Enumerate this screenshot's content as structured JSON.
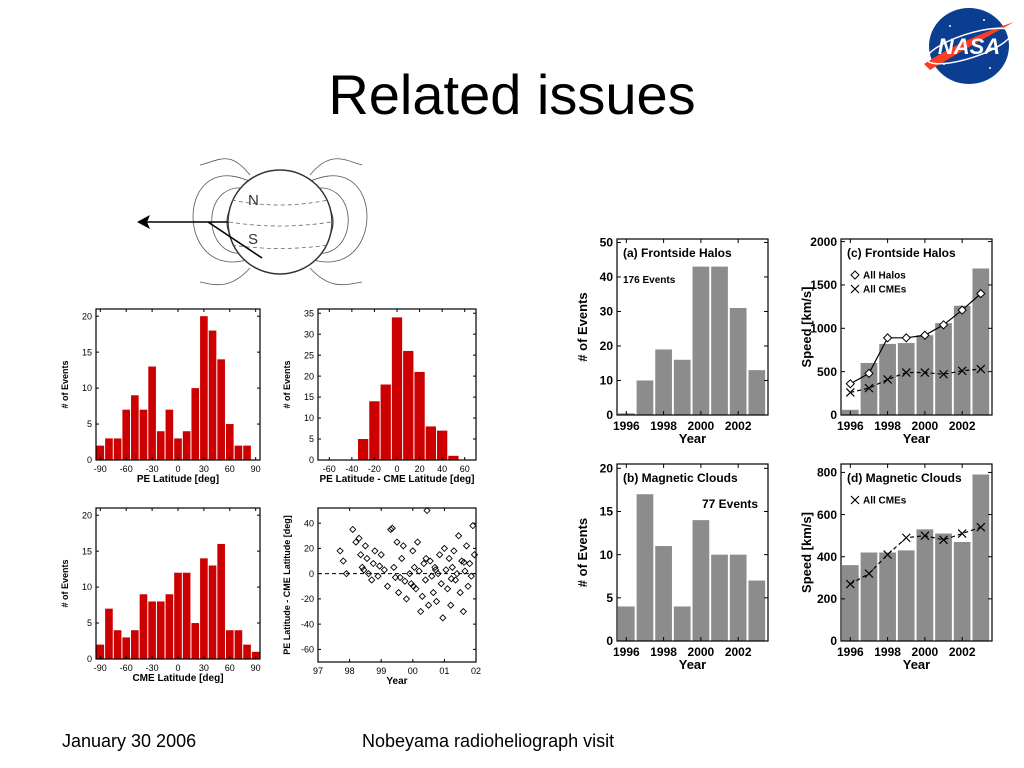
{
  "slide": {
    "title": "Related issues",
    "footer_left": "January 30 2006",
    "footer_center": "Nobeyama radioheliograph visit"
  },
  "logo": {
    "text": "NASA",
    "icon": "nasa-meatball-logo",
    "colors": {
      "blue": "#0b3d91",
      "red": "#fc3d21"
    }
  },
  "diagram": {
    "north_label": "N",
    "south_label": "S",
    "icon": "sun-magnetic-field-diagram"
  },
  "colors": {
    "red_bar": "#cc0000",
    "gray_bar": "#8c8c8c"
  },
  "chart_data": [
    {
      "id": "pe_lat_hist",
      "type": "bar",
      "xlabel": "PE Latitude [deg]",
      "ylabel": "# of Events",
      "x": [
        -90,
        -80,
        -70,
        -60,
        -50,
        -40,
        -30,
        -20,
        -10,
        0,
        10,
        20,
        30,
        40,
        50,
        60,
        70,
        80,
        90
      ],
      "values": [
        2,
        3,
        3,
        7,
        9,
        7,
        13,
        4,
        7,
        3,
        4,
        10,
        20,
        18,
        14,
        5,
        2,
        2,
        0
      ],
      "xticks": [
        -90,
        -60,
        -30,
        0,
        30,
        60,
        90
      ],
      "yticks": [
        0,
        5,
        10,
        15,
        20
      ],
      "xlim": [
        -95,
        95
      ],
      "ylim": [
        0,
        21
      ]
    },
    {
      "id": "cme_lat_hist",
      "type": "bar",
      "xlabel": "CME Latitude [deg]",
      "ylabel": "# of Events",
      "x": [
        -90,
        -80,
        -70,
        -60,
        -50,
        -40,
        -30,
        -20,
        -10,
        0,
        10,
        20,
        30,
        40,
        50,
        60,
        70,
        80,
        90
      ],
      "values": [
        2,
        7,
        4,
        3,
        4,
        9,
        8,
        8,
        9,
        12,
        12,
        5,
        14,
        13,
        16,
        4,
        4,
        2,
        1
      ],
      "xticks": [
        -90,
        -60,
        -30,
        0,
        30,
        60,
        90
      ],
      "yticks": [
        0,
        5,
        10,
        15,
        20
      ],
      "xlim": [
        -95,
        95
      ],
      "ylim": [
        0,
        21
      ]
    },
    {
      "id": "pe_minus_cme_hist",
      "type": "bar",
      "xlabel": "PE Latitude - CME Latitude [deg]",
      "ylabel": "# of Events",
      "x": [
        -30,
        -20,
        -10,
        0,
        10,
        20,
        30,
        40,
        50
      ],
      "values": [
        5,
        14,
        18,
        34,
        26,
        21,
        8,
        7,
        1
      ],
      "xticks": [
        -60,
        -40,
        -20,
        0,
        20,
        40,
        60
      ],
      "yticks": [
        0,
        5,
        10,
        15,
        20,
        25,
        30,
        35
      ],
      "xlim": [
        -70,
        70
      ],
      "ylim": [
        0,
        36
      ]
    },
    {
      "id": "diff_vs_year_scatter",
      "type": "scatter",
      "xlabel": "Year",
      "ylabel": "PE Latitude - CME Latitude [deg]",
      "xticks": [
        97,
        98,
        99,
        0,
        1,
        2
      ],
      "yticks": [
        -60,
        -40,
        -20,
        0,
        20,
        40
      ],
      "xlim": [
        97,
        102
      ],
      "ylim": [
        -70,
        52
      ],
      "points": [
        [
          97.7,
          18
        ],
        [
          97.8,
          10
        ],
        [
          97.9,
          0
        ],
        [
          98.1,
          35
        ],
        [
          98.2,
          25
        ],
        [
          98.3,
          28
        ],
        [
          98.35,
          15
        ],
        [
          98.4,
          5
        ],
        [
          98.5,
          22
        ],
        [
          98.55,
          12
        ],
        [
          98.6,
          0
        ],
        [
          98.7,
          -5
        ],
        [
          98.75,
          8
        ],
        [
          98.8,
          18
        ],
        [
          98.9,
          -2
        ],
        [
          99.0,
          15
        ],
        [
          99.1,
          3
        ],
        [
          99.2,
          -10
        ],
        [
          99.3,
          35
        ],
        [
          99.35,
          36
        ],
        [
          99.4,
          5
        ],
        [
          99.5,
          25
        ],
        [
          99.55,
          -15
        ],
        [
          99.6,
          -3
        ],
        [
          99.65,
          12
        ],
        [
          99.7,
          22
        ],
        [
          99.8,
          -20
        ],
        [
          99.9,
          0
        ],
        [
          99.95,
          -8
        ],
        [
          100.0,
          18
        ],
        [
          100.05,
          5
        ],
        [
          100.1,
          -12
        ],
        [
          100.15,
          25
        ],
        [
          100.2,
          2
        ],
        [
          100.25,
          -30
        ],
        [
          100.3,
          -18
        ],
        [
          100.35,
          8
        ],
        [
          100.4,
          -5
        ],
        [
          100.45,
          50
        ],
        [
          100.5,
          -25
        ],
        [
          100.55,
          10
        ],
        [
          100.6,
          -2
        ],
        [
          100.65,
          -15
        ],
        [
          100.7,
          5
        ],
        [
          100.75,
          -22
        ],
        [
          100.8,
          0
        ],
        [
          100.85,
          15
        ],
        [
          100.9,
          -8
        ],
        [
          100.95,
          -35
        ],
        [
          101.0,
          20
        ],
        [
          101.05,
          3
        ],
        [
          101.1,
          -12
        ],
        [
          101.15,
          12
        ],
        [
          101.2,
          -25
        ],
        [
          101.25,
          5
        ],
        [
          101.3,
          18
        ],
        [
          101.35,
          -5
        ],
        [
          101.4,
          0
        ],
        [
          101.45,
          30
        ],
        [
          101.5,
          -15
        ],
        [
          101.55,
          10
        ],
        [
          101.6,
          -30
        ],
        [
          101.65,
          2
        ],
        [
          101.7,
          22
        ],
        [
          101.75,
          -10
        ],
        [
          101.8,
          8
        ],
        [
          101.85,
          -2
        ],
        [
          101.9,
          38
        ],
        [
          101.95,
          15
        ],
        [
          99.45,
          -3
        ],
        [
          98.95,
          6
        ],
        [
          100.02,
          -10
        ],
        [
          100.72,
          3
        ],
        [
          101.22,
          -4
        ],
        [
          101.62,
          9
        ],
        [
          99.75,
          -6
        ],
        [
          98.45,
          3
        ],
        [
          100.42,
          12
        ]
      ]
    },
    {
      "id": "frontside_halos",
      "type": "bar",
      "panel_label": "(a) Frontside Halos",
      "annotation": "176 Events",
      "xlabel": "Year",
      "ylabel": "# of Events",
      "x": [
        1996,
        1997,
        1998,
        1999,
        2000,
        2001,
        2002,
        2003
      ],
      "values": [
        0.5,
        10,
        19,
        16,
        43,
        43,
        31,
        13
      ],
      "xticks": [
        1996,
        1998,
        2000,
        2002
      ],
      "yticks": [
        0,
        10,
        20,
        30,
        40,
        50
      ],
      "xlim": [
        1995.5,
        2003.6
      ],
      "ylim": [
        0,
        51
      ]
    },
    {
      "id": "magnetic_clouds",
      "type": "bar",
      "panel_label": "(b) Magnetic Clouds",
      "annotation": "77 Events",
      "xlabel": "Year",
      "ylabel": "# of Events",
      "x": [
        1996,
        1997,
        1998,
        1999,
        2000,
        2001,
        2002,
        2003
      ],
      "values": [
        4,
        17,
        11,
        4,
        14,
        10,
        10,
        7
      ],
      "xticks": [
        1996,
        1998,
        2000,
        2002
      ],
      "yticks": [
        0,
        5,
        10,
        15,
        20
      ],
      "xlim": [
        1995.5,
        2003.6
      ],
      "ylim": [
        0,
        20.5
      ]
    },
    {
      "id": "frontside_halos_speed",
      "type": "bar",
      "panel_label": "(c) Frontside Halos",
      "xlabel": "Year",
      "ylabel": "Speed [km/s]",
      "x": [
        1996,
        1997,
        1998,
        1999,
        2000,
        2001,
        2002,
        2003
      ],
      "values": [
        60,
        600,
        820,
        830,
        920,
        1060,
        1260,
        1690
      ],
      "series": [
        {
          "name": "All Halos",
          "marker": "diamond",
          "line": "solid",
          "values": [
            360,
            480,
            890,
            890,
            920,
            1040,
            1210,
            1400
          ]
        },
        {
          "name": "All CMEs",
          "marker": "x",
          "line": "dashed",
          "values": [
            260,
            310,
            410,
            490,
            490,
            470,
            510,
            530
          ]
        }
      ],
      "xticks": [
        1996,
        1998,
        2000,
        2002
      ],
      "yticks": [
        0,
        500,
        1000,
        1500,
        2000
      ],
      "xlim": [
        1995.5,
        2003.6
      ],
      "ylim": [
        0,
        2030
      ]
    },
    {
      "id": "magnetic_clouds_speed",
      "type": "bar",
      "panel_label": "(d) Magnetic Clouds",
      "xlabel": "Year",
      "ylabel": "Speed [km/s]",
      "x": [
        1996,
        1997,
        1998,
        1999,
        2000,
        2001,
        2002,
        2003
      ],
      "values": [
        360,
        420,
        420,
        430,
        530,
        510,
        470,
        790
      ],
      "series": [
        {
          "name": "All CMEs",
          "marker": "x",
          "line": "dashed",
          "values": [
            270,
            320,
            410,
            490,
            500,
            480,
            510,
            540
          ]
        }
      ],
      "xticks": [
        1996,
        1998,
        2000,
        2002
      ],
      "yticks": [
        0,
        200,
        400,
        600,
        800
      ],
      "xlim": [
        1995.5,
        2003.6
      ],
      "ylim": [
        0,
        840
      ]
    }
  ]
}
